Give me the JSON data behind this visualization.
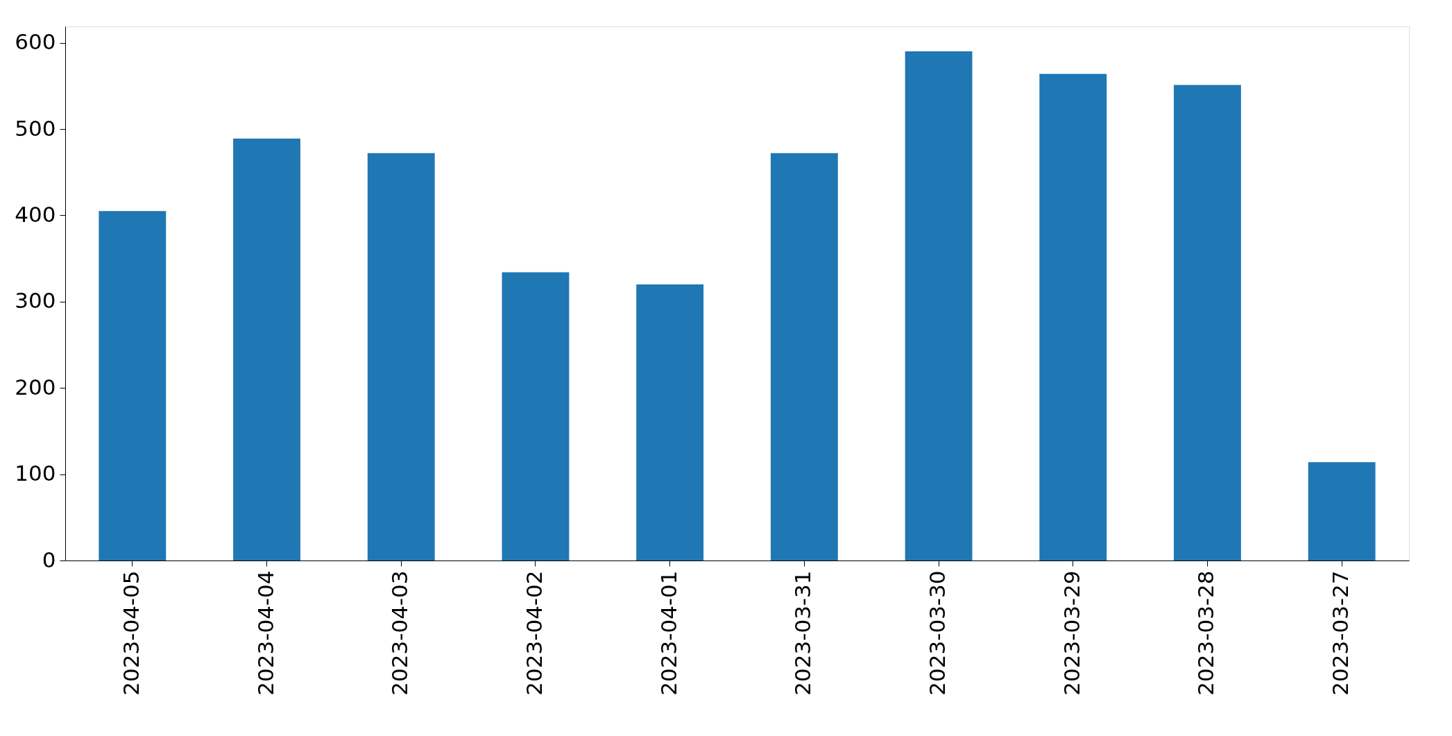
{
  "chart_data": {
    "type": "bar",
    "categories": [
      "2023-04-05",
      "2023-04-04",
      "2023-04-03",
      "2023-04-02",
      "2023-04-01",
      "2023-03-31",
      "2023-03-30",
      "2023-03-29",
      "2023-03-28",
      "2023-03-27"
    ],
    "values": [
      405,
      489,
      472,
      334,
      320,
      472,
      590,
      564,
      551,
      114
    ],
    "color": "#1f77b4",
    "ylim": [
      0,
      619
    ],
    "yticks": [
      0,
      100,
      200,
      300,
      400,
      500,
      600
    ]
  }
}
